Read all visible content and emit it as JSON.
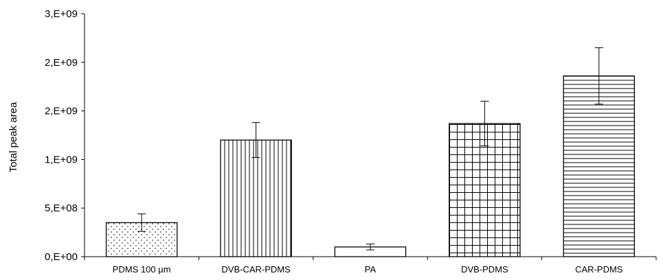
{
  "chart_data": {
    "type": "bar",
    "title": "",
    "xlabel": "",
    "ylabel": "Total peak area",
    "categories": [
      "PDMS 100 µm",
      "DVB-CAR-PDMS",
      "PA",
      "DVB-PDMS",
      "CAR-PDMS"
    ],
    "values": [
      350000000,
      1200000000,
      100000000,
      1370000000,
      1860000000
    ],
    "error": [
      90000000,
      180000000,
      30000000,
      230000000,
      290000000
    ],
    "patterns": [
      "dots",
      "vertical",
      "blank",
      "grid",
      "horizontal"
    ],
    "ylim": [
      0,
      2500000000
    ],
    "yticks": [
      {
        "value": 0,
        "label": "0,E+00"
      },
      {
        "value": 500000000,
        "label": "5,E+08"
      },
      {
        "value": 1000000000,
        "label": "1,E+09"
      },
      {
        "value": 1500000000,
        "label": "2,E+09"
      },
      {
        "value": 2000000000,
        "label": "2,E+09"
      },
      {
        "value": 2500000000,
        "label": "3,E+09"
      }
    ],
    "grid": false,
    "legend": "none",
    "colors": {
      "bar_fill": "#ffffff",
      "bar_stroke": "#000000",
      "pattern": "#000000"
    }
  }
}
